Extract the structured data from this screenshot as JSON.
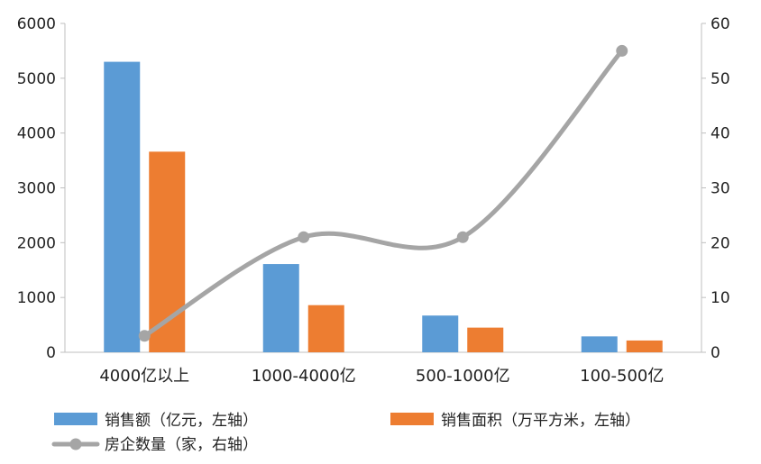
{
  "chart_data": {
    "type": "bar",
    "categories": [
      "4000亿以上",
      "1000-4000亿",
      "500-1000亿",
      "100-500亿"
    ],
    "series": [
      {
        "name": "销售额（亿元，左轴）",
        "values": [
          5300,
          1610,
          670,
          290
        ],
        "color": "#5B9BD5",
        "axis": "left",
        "type": "bar"
      },
      {
        "name": "销售面积（万平方米，左轴）",
        "values": [
          3660,
          860,
          450,
          215
        ],
        "color": "#ED7D31",
        "axis": "left",
        "type": "bar"
      },
      {
        "name": "房企数量（家，右轴）",
        "values": [
          3,
          21,
          21,
          55
        ],
        "color": "#A5A5A5",
        "axis": "right",
        "type": "line",
        "smooth": true
      }
    ],
    "yleft": {
      "min": 0,
      "max": 6000,
      "ticks": [
        "0",
        "1000",
        "2000",
        "3000",
        "4000",
        "5000",
        "6000"
      ]
    },
    "yright": {
      "min": 0,
      "max": 60,
      "ticks": [
        "0",
        "10",
        "20",
        "30",
        "40",
        "50",
        "60"
      ]
    },
    "grid": false,
    "legend_position": "bottom"
  }
}
